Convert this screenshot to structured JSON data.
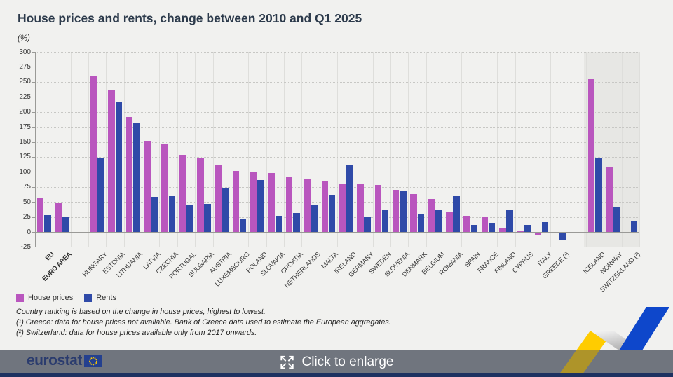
{
  "page": {
    "title": "House prices and rents, change between 2010 and Q1 2025",
    "unit_label": "(%)"
  },
  "legend": [
    {
      "label": "House prices",
      "color": "#B956BE"
    },
    {
      "label": "Rents",
      "color": "#2F4AA8"
    }
  ],
  "footnotes": [
    "Country ranking is based on the change in house prices, highest to lowest.",
    "(¹) Greece: data for house prices not available. Bank of Greece data used to estimate the European aggregates.",
    "(²) Switzerland: data for house prices available only from 2017 onwards."
  ],
  "footer": {
    "logo_text": "eurostat",
    "enlarge_label": "Click to enlarge"
  },
  "colors": {
    "page_bg": "#F1F1EF",
    "house_prices": "#B956BE",
    "rents": "#2F4AA8",
    "efta_bg": "#E7E7E4",
    "footer_bar": "#70757E",
    "footer_line": "#1D3160",
    "brand_yellow": "#FFCC00",
    "brand_blue": "#0E47CB"
  },
  "chart_data": {
    "type": "bar",
    "title": "House prices and rents, change between 2010 and Q1 2025",
    "xlabel": "",
    "ylabel": "(%)",
    "ylim": [
      -25,
      300
    ],
    "ytick_step": 25,
    "grid": true,
    "legend_position": "bottom-left",
    "categories": [
      "EU",
      "EURO AREA",
      "HUNGARY",
      "ESTONIA",
      "LITHUANIA",
      "LATVIA",
      "CZECHIA",
      "PORTUGAL",
      "BULGARIA",
      "AUSTRIA",
      "LUXEMBOURG",
      "POLAND",
      "SLOVAKIA",
      "CROATIA",
      "NETHERLANDS",
      "MALTA",
      "IRELAND",
      "GERMANY",
      "SWEDEN",
      "SLOVENIA",
      "DENMARK",
      "BELGIUM",
      "ROMANIA",
      "SPAIN",
      "FRANCE",
      "FINLAND",
      "CYPRUS",
      "ITALY",
      "GREECE (¹)",
      "ICELAND",
      "NORWAY",
      "SWITZERLAND (²)"
    ],
    "groups": {
      "aggregates": [
        "EU",
        "EURO AREA"
      ],
      "efta": [
        "ICELAND",
        "NORWAY",
        "SWITZERLAND (²)"
      ]
    },
    "series": [
      {
        "name": "House prices",
        "color": "#B956BE",
        "values": [
          57,
          49,
          260,
          236,
          192,
          152,
          146,
          128,
          122,
          112,
          101,
          100,
          98,
          92,
          88,
          84,
          80,
          79,
          78,
          70,
          63,
          55,
          34,
          27,
          26,
          6,
          1,
          -3,
          null,
          254,
          108,
          null
        ]
      },
      {
        "name": "Rents",
        "color": "#2F4AA8",
        "values": [
          28,
          26,
          123,
          217,
          181,
          58,
          61,
          46,
          47,
          73,
          22,
          86,
          27,
          32,
          45,
          62,
          112,
          25,
          36,
          68,
          30,
          36,
          60,
          12,
          15,
          37,
          12,
          16,
          -12,
          122,
          41,
          17
        ]
      }
    ]
  }
}
